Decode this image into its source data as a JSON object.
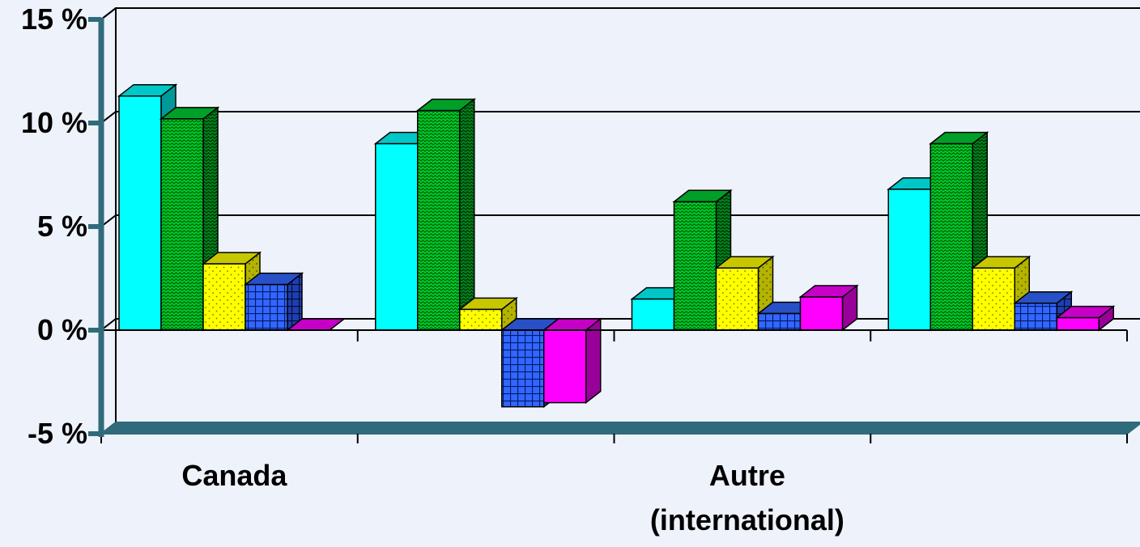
{
  "chart_data": {
    "type": "bar",
    "style": "3d-clustered-column",
    "title": "",
    "xlabel": "",
    "ylabel": "",
    "ylim": [
      -5,
      15
    ],
    "yticks": [
      "-5 %",
      "0 %",
      "5 %",
      "10 %",
      "15 %"
    ],
    "ytick_values": [
      -5,
      0,
      5,
      10,
      15
    ],
    "grid": true,
    "legend": "none",
    "categories": [
      "Canada",
      "",
      "Autre\n(international)",
      ""
    ],
    "category_label_lines": [
      [
        "Canada"
      ],
      [],
      [
        "Autre",
        "(international)"
      ],
      []
    ],
    "series": [
      {
        "color": "#00ffff",
        "pattern": "solid",
        "values": [
          11.3,
          9.0,
          1.5,
          6.8
        ]
      },
      {
        "color": "#00cc33",
        "pattern": "wave",
        "values": [
          10.2,
          10.6,
          6.2,
          9.0
        ]
      },
      {
        "color": "#ffff00",
        "pattern": "dots",
        "values": [
          3.2,
          1.0,
          3.0,
          3.0
        ]
      },
      {
        "color": "#3366ff",
        "pattern": "grid",
        "values": [
          2.2,
          -3.7,
          0.8,
          1.3
        ]
      },
      {
        "color": "#ff00ff",
        "pattern": "solid",
        "values": [
          0.0,
          -3.5,
          1.6,
          0.6
        ]
      }
    ]
  },
  "colors": {
    "background": "#eef2fa",
    "axis": "#2f6b7b",
    "grid": "#000000"
  }
}
